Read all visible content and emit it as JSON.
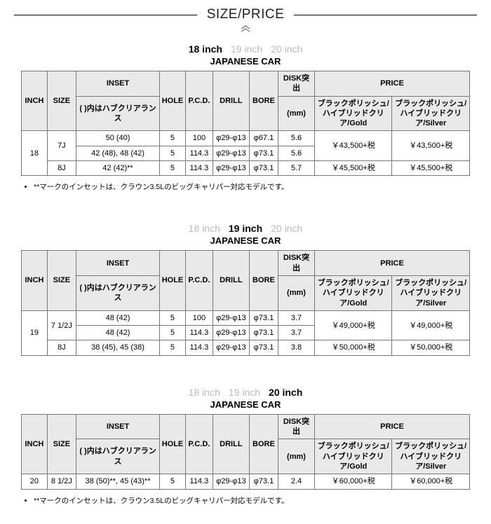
{
  "page_title": "SIZE/PRICE",
  "tab_labels": [
    "18 inch",
    "19 inch",
    "20 inch"
  ],
  "subtitle": "JAPANESE CAR",
  "header": {
    "inch": "INCH",
    "size": "SIZE",
    "inset_group": "INSET",
    "inset_sub": "( )内はハブクリアランス",
    "hole": "HOLE",
    "pcd": "P.C.D.",
    "drill": "DRILL",
    "bore": "BORE",
    "disk_group": "DISK突出",
    "disk_sub": "(mm)",
    "price_group": "PRICE",
    "price_gold": "ブラックポリッシュ/ハイブリッドクリア/Gold",
    "price_silver": "ブラックポリッシュ/ハイブリッドクリア/Silver"
  },
  "sections": [
    {
      "active_tab": 0,
      "rows": [
        {
          "inch": "18",
          "size": "7J",
          "inset": "50 (40)",
          "hole": "5",
          "pcd": "100",
          "drill": "φ29-φ13",
          "bore": "φ67.1",
          "disk": "5.6",
          "gold": "￥43,500+税",
          "silver": "￥43,500+税",
          "merge_inch": 3,
          "merge_size": 2,
          "merge_price": 2
        },
        {
          "inset": "42 (48), 48 (42)",
          "hole": "5",
          "pcd": "114.3",
          "drill": "φ29-φ13",
          "bore": "φ73.1",
          "disk": "5.6"
        },
        {
          "size": "8J",
          "inset": "42 (42)**",
          "hole": "5",
          "pcd": "114.3",
          "drill": "φ29-φ13",
          "bore": "φ73.1",
          "disk": "5.7",
          "gold": "￥45,500+税",
          "silver": "￥45,500+税"
        }
      ],
      "note": "**マークのインセットは、クラウン3.5Lのビッグキャリパー対応モデルです。"
    },
    {
      "active_tab": 1,
      "rows": [
        {
          "inch": "19",
          "size": "7 1/2J",
          "inset": "48 (42)",
          "hole": "5",
          "pcd": "100",
          "drill": "φ29-φ13",
          "bore": "φ73.1",
          "disk": "3.7",
          "gold": "￥49,000+税",
          "silver": "￥49,000+税",
          "merge_inch": 3,
          "merge_size": 2,
          "merge_price": 2
        },
        {
          "inset": "48 (42)",
          "hole": "5",
          "pcd": "114.3",
          "drill": "φ29-φ13",
          "bore": "φ73.1",
          "disk": "3.7"
        },
        {
          "size": "8J",
          "inset": "38 (45), 45 (38)",
          "hole": "5",
          "pcd": "114.3",
          "drill": "φ29-φ13",
          "bore": "φ73.1",
          "disk": "3.8",
          "gold": "￥50,000+税",
          "silver": "￥50,000+税"
        }
      ]
    },
    {
      "active_tab": 2,
      "rows": [
        {
          "inch": "20",
          "size": "8 1/2J",
          "inset": "38 (50)**, 45 (43)**",
          "hole": "5",
          "pcd": "114.3",
          "drill": "φ29-φ13",
          "bore": "φ73.1",
          "disk": "2.4",
          "gold": "￥60,000+税",
          "silver": "￥60,000+税"
        }
      ],
      "note": "**マークのインセットは、クラウン3.5Lのビッグキャリパー対応モデルです。"
    }
  ]
}
